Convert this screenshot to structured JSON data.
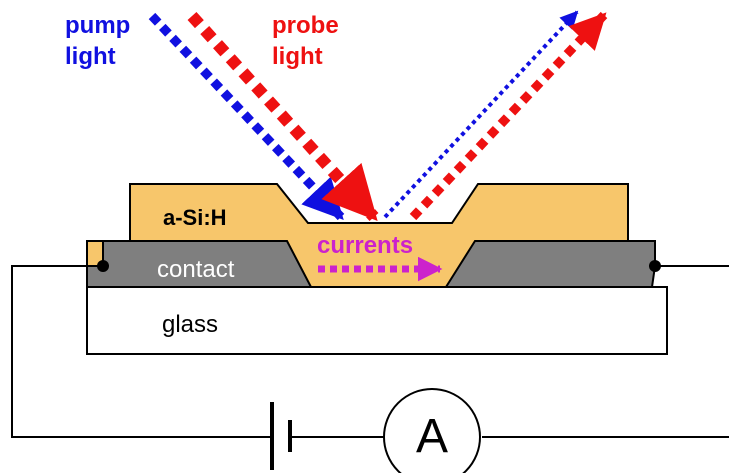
{
  "labels": {
    "pump_line1": "pump",
    "pump_line2": "light",
    "probe_line1": "probe",
    "probe_line2": "light",
    "film": "a-Si:H",
    "currents": "currents",
    "contact": "contact",
    "glass": "glass",
    "ammeter": "A"
  },
  "colors": {
    "pump": "#1010e0",
    "probe": "#ee1111",
    "currents": "#cc22cc",
    "film": "#f7c66b",
    "contact": "#7f7f7f",
    "glass": "#ffffff",
    "wire": "#000000"
  }
}
